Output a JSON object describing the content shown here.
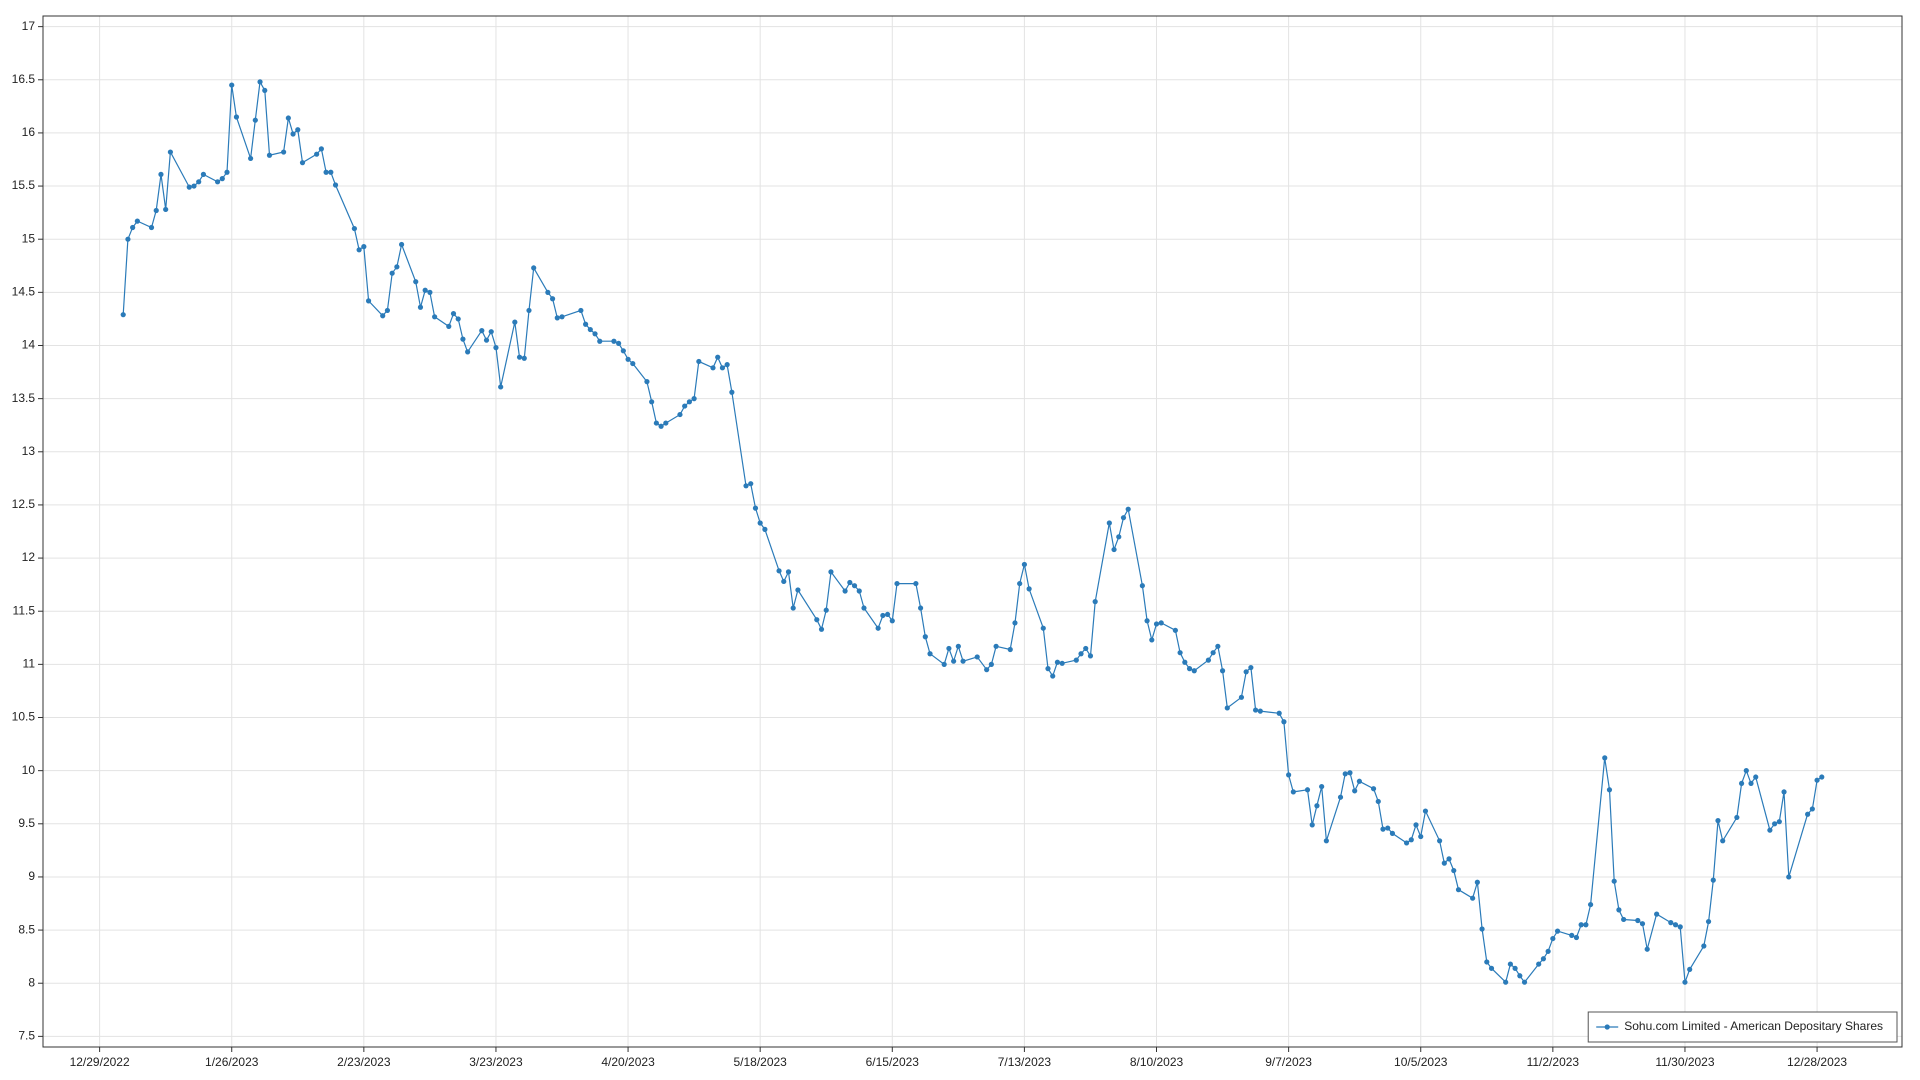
{
  "chart_data": {
    "type": "line",
    "x": [
      "1/3/2023",
      "1/4/2023",
      "1/5/2023",
      "1/6/2023",
      "1/9/2023",
      "1/10/2023",
      "1/11/2023",
      "1/12/2023",
      "1/13/2023",
      "1/17/2023",
      "1/18/2023",
      "1/19/2023",
      "1/20/2023",
      "1/23/2023",
      "1/24/2023",
      "1/25/2023",
      "1/26/2023",
      "1/27/2023",
      "1/30/2023",
      "1/31/2023",
      "2/1/2023",
      "2/2/2023",
      "2/3/2023",
      "2/6/2023",
      "2/7/2023",
      "2/8/2023",
      "2/9/2023",
      "2/10/2023",
      "2/13/2023",
      "2/14/2023",
      "2/15/2023",
      "2/16/2023",
      "2/17/2023",
      "2/21/2023",
      "2/22/2023",
      "2/23/2023",
      "2/24/2023",
      "2/27/2023",
      "2/28/2023",
      "3/1/2023",
      "3/2/2023",
      "3/3/2023",
      "3/6/2023",
      "3/7/2023",
      "3/8/2023",
      "3/9/2023",
      "3/10/2023",
      "3/13/2023",
      "3/14/2023",
      "3/15/2023",
      "3/16/2023",
      "3/17/2023",
      "3/20/2023",
      "3/21/2023",
      "3/22/2023",
      "3/23/2023",
      "3/24/2023",
      "3/27/2023",
      "3/28/2023",
      "3/29/2023",
      "3/30/2023",
      "3/31/2023",
      "4/3/2023",
      "4/4/2023",
      "4/5/2023",
      "4/6/2023",
      "4/10/2023",
      "4/11/2023",
      "4/12/2023",
      "4/13/2023",
      "4/14/2023",
      "4/17/2023",
      "4/18/2023",
      "4/19/2023",
      "4/20/2023",
      "4/21/2023",
      "4/24/2023",
      "4/25/2023",
      "4/26/2023",
      "4/27/2023",
      "4/28/2023",
      "5/1/2023",
      "5/2/2023",
      "5/3/2023",
      "5/4/2023",
      "5/5/2023",
      "5/8/2023",
      "5/9/2023",
      "5/10/2023",
      "5/11/2023",
      "5/12/2023",
      "5/15/2023",
      "5/16/2023",
      "5/17/2023",
      "5/18/2023",
      "5/19/2023",
      "5/22/2023",
      "5/23/2023",
      "5/24/2023",
      "5/25/2023",
      "5/26/2023",
      "5/30/2023",
      "5/31/2023",
      "6/1/2023",
      "6/2/2023",
      "6/5/2023",
      "6/6/2023",
      "6/7/2023",
      "6/8/2023",
      "6/9/2023",
      "6/12/2023",
      "6/13/2023",
      "6/14/2023",
      "6/15/2023",
      "6/16/2023",
      "6/20/2023",
      "6/21/2023",
      "6/22/2023",
      "6/23/2023",
      "6/26/2023",
      "6/27/2023",
      "6/28/2023",
      "6/29/2023",
      "6/30/2023",
      "7/3/2023",
      "7/5/2023",
      "7/6/2023",
      "7/7/2023",
      "7/10/2023",
      "7/11/2023",
      "7/12/2023",
      "7/13/2023",
      "7/14/2023",
      "7/17/2023",
      "7/18/2023",
      "7/19/2023",
      "7/20/2023",
      "7/21/2023",
      "7/24/2023",
      "7/25/2023",
      "7/26/2023",
      "7/27/2023",
      "7/28/2023",
      "7/31/2023",
      "8/1/2023",
      "8/2/2023",
      "8/3/2023",
      "8/4/2023",
      "8/7/2023",
      "8/8/2023",
      "8/9/2023",
      "8/10/2023",
      "8/11/2023",
      "8/14/2023",
      "8/15/2023",
      "8/16/2023",
      "8/17/2023",
      "8/18/2023",
      "8/21/2023",
      "8/22/2023",
      "8/23/2023",
      "8/24/2023",
      "8/25/2023",
      "8/28/2023",
      "8/29/2023",
      "8/30/2023",
      "8/31/2023",
      "9/1/2023",
      "9/5/2023",
      "9/6/2023",
      "9/7/2023",
      "9/8/2023",
      "9/11/2023",
      "9/12/2023",
      "9/13/2023",
      "9/14/2023",
      "9/15/2023",
      "9/18/2023",
      "9/19/2023",
      "9/20/2023",
      "9/21/2023",
      "9/22/2023",
      "9/25/2023",
      "9/26/2023",
      "9/27/2023",
      "9/28/2023",
      "9/29/2023",
      "10/2/2023",
      "10/3/2023",
      "10/4/2023",
      "10/5/2023",
      "10/6/2023",
      "10/9/2023",
      "10/10/2023",
      "10/11/2023",
      "10/12/2023",
      "10/13/2023",
      "10/16/2023",
      "10/17/2023",
      "10/18/2023",
      "10/19/2023",
      "10/20/2023",
      "10/23/2023",
      "10/24/2023",
      "10/25/2023",
      "10/26/2023",
      "10/27/2023",
      "10/30/2023",
      "10/31/2023",
      "11/1/2023",
      "11/2/2023",
      "11/3/2023",
      "11/6/2023",
      "11/7/2023",
      "11/8/2023",
      "11/9/2023",
      "11/10/2023",
      "11/13/2023",
      "11/14/2023",
      "11/15/2023",
      "11/16/2023",
      "11/17/2023",
      "11/20/2023",
      "11/21/2023",
      "11/22/2023",
      "11/24/2023",
      "11/27/2023",
      "11/28/2023",
      "11/29/2023",
      "11/30/2023",
      "12/1/2023",
      "12/4/2023",
      "12/5/2023",
      "12/6/2023",
      "12/7/2023",
      "12/8/2023",
      "12/11/2023",
      "12/12/2023",
      "12/13/2023",
      "12/14/2023",
      "12/15/2023",
      "12/18/2023",
      "12/19/2023",
      "12/20/2023",
      "12/21/2023",
      "12/22/2023",
      "12/26/2023",
      "12/27/2023",
      "12/28/2023",
      "12/29/2023"
    ],
    "series": [
      {
        "name": "Sohu.com Limited  - American Depositary Shares",
        "color": "#2b7bb9",
        "values": [
          14.29,
          15.0,
          15.11,
          15.17,
          15.11,
          15.27,
          15.61,
          15.28,
          15.82,
          15.49,
          15.5,
          15.54,
          15.61,
          15.54,
          15.57,
          15.63,
          16.45,
          16.15,
          15.76,
          16.12,
          16.48,
          16.4,
          15.79,
          15.82,
          16.14,
          15.99,
          16.03,
          15.72,
          15.8,
          15.85,
          15.63,
          15.63,
          15.51,
          15.1,
          14.9,
          14.93,
          14.42,
          14.28,
          14.33,
          14.68,
          14.74,
          14.95,
          14.6,
          14.36,
          14.52,
          14.5,
          14.27,
          14.18,
          14.3,
          14.25,
          14.06,
          13.94,
          14.14,
          14.05,
          14.13,
          13.98,
          13.61,
          14.22,
          13.89,
          13.88,
          14.33,
          14.73,
          14.5,
          14.44,
          14.26,
          14.27,
          14.33,
          14.2,
          14.15,
          14.11,
          14.04,
          14.04,
          14.02,
          13.95,
          13.87,
          13.83,
          13.66,
          13.47,
          13.27,
          13.24,
          13.27,
          13.35,
          13.43,
          13.47,
          13.5,
          13.85,
          13.79,
          13.89,
          13.79,
          13.82,
          13.56,
          12.68,
          12.7,
          12.47,
          12.33,
          12.27,
          11.88,
          11.78,
          11.87,
          11.53,
          11.7,
          11.42,
          11.33,
          11.51,
          11.87,
          11.69,
          11.77,
          11.74,
          11.69,
          11.53,
          11.34,
          11.46,
          11.47,
          11.41,
          11.76,
          11.76,
          11.53,
          11.26,
          11.1,
          11.0,
          11.15,
          11.03,
          11.17,
          11.03,
          11.07,
          10.95,
          11.0,
          11.17,
          11.14,
          11.39,
          11.76,
          11.94,
          11.71,
          11.34,
          10.96,
          10.89,
          11.02,
          11.01,
          11.04,
          11.1,
          11.15,
          11.08,
          11.59,
          12.33,
          12.08,
          12.2,
          12.38,
          12.46,
          11.74,
          11.41,
          11.23,
          11.38,
          11.39,
          11.32,
          11.11,
          11.02,
          10.96,
          10.94,
          11.04,
          11.11,
          11.17,
          10.94,
          10.59,
          10.69,
          10.93,
          10.97,
          10.57,
          10.56,
          10.54,
          10.46,
          9.96,
          9.8,
          9.82,
          9.49,
          9.67,
          9.85,
          9.34,
          9.75,
          9.97,
          9.98,
          9.81,
          9.9,
          9.83,
          9.71,
          9.45,
          9.46,
          9.41,
          9.32,
          9.35,
          9.49,
          9.38,
          9.62,
          9.34,
          9.13,
          9.17,
          9.06,
          8.88,
          8.8,
          8.95,
          8.51,
          8.2,
          8.14,
          8.01,
          8.18,
          8.14,
          8.07,
          8.01,
          8.18,
          8.23,
          8.3,
          8.42,
          8.49,
          8.45,
          8.43,
          8.55,
          8.55,
          8.74,
          10.12,
          9.82,
          8.96,
          8.69,
          8.6,
          8.59,
          8.56,
          8.32,
          8.65,
          8.57,
          8.55,
          8.53,
          8.01,
          8.13,
          8.35,
          8.58,
          8.97,
          9.53,
          9.34,
          9.56,
          9.88,
          10.0,
          9.88,
          9.94,
          9.44,
          9.5,
          9.52,
          9.8,
          9.0,
          9.59,
          9.64,
          9.91,
          9.94
        ]
      }
    ],
    "xlim": [
      "12/17/2022",
      "1/15/2024"
    ],
    "xticks": [
      "12/29/2022",
      "1/26/2023",
      "2/23/2023",
      "3/23/2023",
      "4/20/2023",
      "5/18/2023",
      "6/15/2023",
      "7/13/2023",
      "8/10/2023",
      "9/7/2023",
      "10/5/2023",
      "11/2/2023",
      "11/30/2023",
      "12/28/2023"
    ],
    "ylim": [
      7.4,
      17.1
    ],
    "yticks": [
      7.5,
      8,
      8.5,
      9,
      9.5,
      10,
      10.5,
      11,
      11.5,
      12,
      12.5,
      13,
      13.5,
      14,
      14.5,
      15,
      15.5,
      16,
      16.5,
      17
    ],
    "grid": true,
    "legend": "bottom-right"
  }
}
